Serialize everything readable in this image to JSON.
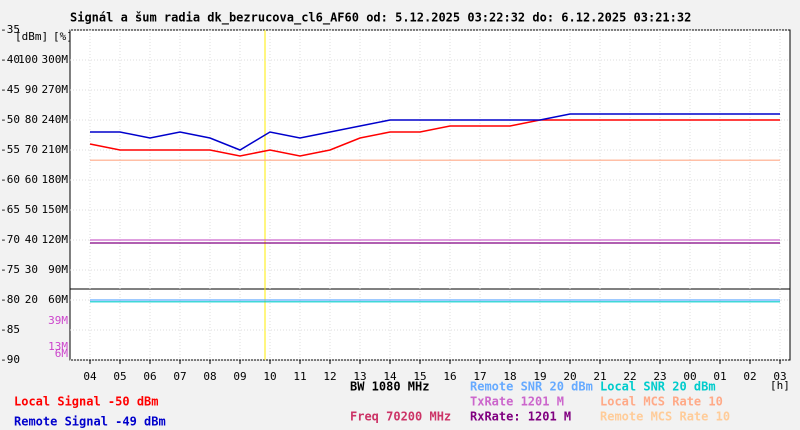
{
  "chart_data": {
    "type": "line",
    "title": "Signál a šum radia dk_bezrucova_cl6_AF60 od: 5.12.2025 03:22:32 do: 6.12.2025 03:21:32",
    "y_unit": "[dBm]",
    "y2_unit": "[%]",
    "x_unit": "[h]",
    "categories": [
      "04",
      "05",
      "06",
      "07",
      "08",
      "09",
      "10",
      "11",
      "12",
      "13",
      "14",
      "15",
      "16",
      "17",
      "18",
      "19",
      "20",
      "21",
      "22",
      "23",
      "00",
      "01",
      "02",
      "03"
    ],
    "ylim": [
      -90,
      -35
    ],
    "yticks": [
      -35,
      -40,
      -45,
      -50,
      -55,
      -60,
      -65,
      -70,
      -75,
      -80,
      -85,
      -90
    ],
    "y2lim": [
      0,
      110
    ],
    "y2ticks": [
      100,
      90,
      80,
      70,
      60,
      50,
      40,
      30,
      20
    ],
    "y3lim": [
      0,
      330
    ],
    "y3ticks": [
      {
        "value": 300,
        "label": "300M"
      },
      {
        "value": 270,
        "label": "270M"
      },
      {
        "value": 240,
        "label": "240M"
      },
      {
        "value": 210,
        "label": "210M"
      },
      {
        "value": 180,
        "label": "180M"
      },
      {
        "value": 150,
        "label": "150M"
      },
      {
        "value": 120,
        "label": "120M"
      },
      {
        "value": 90,
        "label": "90M"
      },
      {
        "value": 60,
        "label": "60M"
      },
      {
        "value": 39,
        "label": "39M"
      },
      {
        "value": 13,
        "label": "13M"
      },
      {
        "value": 6,
        "label": "6M"
      }
    ],
    "grid": true,
    "series": [
      {
        "name": "Local Signal -50 dBm",
        "color": "#ff0000",
        "values": [
          -54,
          -55,
          -55,
          -55,
          -55,
          -56,
          -55,
          -56,
          -55,
          -53,
          -52,
          -52,
          -51,
          -51,
          -51,
          -50,
          -50,
          -50,
          -50,
          -50,
          -50,
          -50,
          -50,
          -50
        ]
      },
      {
        "name": "Remote Signal -49 dBm",
        "color": "#0000cc",
        "values": [
          -52,
          -52,
          -53,
          -52,
          -53,
          -55,
          -52,
          -53,
          -52,
          -51,
          -50,
          -50,
          -50,
          -50,
          -50,
          -50,
          -49,
          -49,
          -49,
          -49,
          -49,
          -49,
          -49,
          -49
        ]
      },
      {
        "name": "Remote SNR 20 dBm",
        "color": "#66aaff",
        "values": [
          -80,
          -80,
          -80,
          -80,
          -80,
          -80,
          -80,
          -80,
          -80,
          -80,
          -80,
          -80,
          -80,
          -80,
          -80,
          -80,
          -80,
          -80,
          -80,
          -80,
          -80,
          -80,
          -80,
          -80
        ]
      },
      {
        "name": "Local SNR 20 dBm",
        "color": "#00cccc",
        "values": [
          -80.3,
          -80.3,
          -80.3,
          -80.3,
          -80.3,
          -80.3,
          -80.3,
          -80.3,
          -80.3,
          -80.3,
          -80.3,
          -80.3,
          -80.3,
          -80.3,
          -80.3,
          -80.3,
          -80.3,
          -80.3,
          -80.3,
          -80.3,
          -80.3,
          -80.3,
          -80.3,
          -80.3
        ]
      },
      {
        "name": "TxRate 1201 M",
        "color": "#cc66cc",
        "values": [
          -70,
          -70,
          -70,
          -70,
          -70,
          -70,
          -70,
          -70,
          -70,
          -70,
          -70,
          -70,
          -70,
          -70,
          -70,
          -70,
          -70,
          -70,
          -70,
          -70,
          -70,
          -70,
          -70,
          -70
        ]
      },
      {
        "name": "Local MCS Rate 10",
        "color": "#ffaa88",
        "values": [
          -56.7,
          -56.7,
          -56.7,
          -56.7,
          -56.7,
          -56.7,
          -56.7,
          -56.7,
          -56.7,
          -56.7,
          -56.7,
          -56.7,
          -56.7,
          -56.7,
          -56.7,
          -56.7,
          -56.7,
          -56.7,
          -56.7,
          -56.7,
          -56.7,
          -56.7,
          -56.7,
          -56.7
        ]
      },
      {
        "name": "RxRate: 1201 M",
        "color": "#800080",
        "values": [
          -70.5,
          -70.5,
          -70.5,
          -70.5,
          -70.5,
          -70.5,
          -70.5,
          -70.5,
          -70.5,
          -70.5,
          -70.5,
          -70.5,
          -70.5,
          -70.5,
          -70.5,
          -70.5,
          -70.5,
          -70.5,
          -70.5,
          -70.5,
          -70.5,
          -70.5,
          -70.5,
          -70.5
        ]
      }
    ],
    "legend_extra": [
      {
        "name": "BW 1080 MHz",
        "color": "#000000"
      },
      {
        "name": "Freq 70200 MHz",
        "color": "#cc3366"
      },
      {
        "name": "Remote MCS Rate 10",
        "color": "#ffcc99"
      }
    ]
  }
}
